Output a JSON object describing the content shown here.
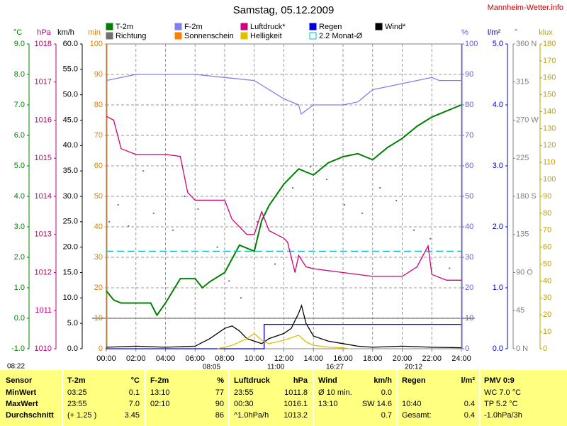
{
  "chart_data": {
    "type": "line",
    "title": "Samstag, 05.12.2009",
    "source": "Mannheim-Wetter.info",
    "xlim": [
      0,
      24
    ],
    "xticks": [
      {
        "value": 0,
        "label": "00:00"
      },
      {
        "value": 2,
        "label": "02:00"
      },
      {
        "value": 4,
        "label": "04:00"
      },
      {
        "value": 6,
        "label": "06:00"
      },
      {
        "value": 8,
        "label": "08:00"
      },
      {
        "value": 10,
        "label": "10:00"
      },
      {
        "value": 12,
        "label": "12:00"
      },
      {
        "value": 14,
        "label": "14:00"
      },
      {
        "value": 16,
        "label": "16:00"
      },
      {
        "value": 18,
        "label": "18:00"
      },
      {
        "value": 20,
        "label": "20:00"
      },
      {
        "value": 22,
        "label": "22:00"
      },
      {
        "value": 24,
        "label": "24:00"
      }
    ],
    "grid": true,
    "markers": [
      "08:22",
      "08:05",
      "11:00",
      "16:27",
      "20:12"
    ],
    "axes": [
      {
        "unit": "°C",
        "color": "#008000",
        "lim": [
          -1,
          9
        ],
        "ticks": [
          {
            "value": -1,
            "label": "-1.0"
          },
          {
            "value": 0,
            "label": "0.0"
          },
          {
            "value": 1,
            "label": "1.0"
          },
          {
            "value": 2,
            "label": "2.0"
          },
          {
            "value": 3,
            "label": "3.0"
          },
          {
            "value": 4,
            "label": "4.0"
          },
          {
            "value": 5,
            "label": "5.0"
          },
          {
            "value": 6,
            "label": "6.0"
          },
          {
            "value": 7,
            "label": "7.0"
          },
          {
            "value": 8,
            "label": "8.0"
          },
          {
            "value": 9,
            "label": "9.0"
          }
        ],
        "series": [
          {
            "name": "T-2m",
            "color": "#008000",
            "x": [
              0,
              0.5,
              1,
              2,
              3,
              3.42,
              4,
              5,
              6,
              6.5,
              7,
              8,
              9,
              10,
              10.5,
              11,
              12,
              13,
              14,
              15,
              16,
              17,
              18,
              19,
              20,
              21,
              22,
              23,
              24
            ],
            "values": [
              0.9,
              0.6,
              0.5,
              0.5,
              0.5,
              0.1,
              0.5,
              1.3,
              1.3,
              1.0,
              1.2,
              1.5,
              2.4,
              2.2,
              3.2,
              3.7,
              4.4,
              4.9,
              4.7,
              5.1,
              5.3,
              5.4,
              5.2,
              5.6,
              5.9,
              6.3,
              6.6,
              6.8,
              7.0
            ]
          },
          {
            "name": "2.2 Monat-Ø",
            "color": "#00c0c0",
            "dash": true,
            "x": [
              0,
              24
            ],
            "values": [
              2.2,
              2.2
            ]
          }
        ]
      },
      {
        "unit": "hPa",
        "color": "#c00070",
        "lim": [
          1010,
          1018
        ],
        "ticks": [
          1010,
          1011,
          1012,
          1013,
          1014,
          1015,
          1016,
          1017,
          1018
        ],
        "series": [
          {
            "name": "Luftdruck*",
            "color": "#d0007a",
            "x": [
              0,
              0.5,
              1,
              2,
              4,
              5,
              5.5,
              6,
              8,
              8.5,
              9.5,
              10,
              10.5,
              11,
              12,
              12.25,
              12.75,
              13,
              13.5,
              14,
              16,
              18,
              20,
              21,
              21.75,
              22,
              23,
              24
            ],
            "values": [
              1016.1,
              1016.0,
              1015.25,
              1015.1,
              1015.1,
              1015.05,
              1014.1,
              1013.9,
              1013.9,
              1013.4,
              1013.0,
              1013.0,
              1013.6,
              1013.1,
              1012.9,
              1012.8,
              1012.0,
              1012.45,
              1012.15,
              1012.1,
              1012.0,
              1011.9,
              1011.9,
              1012.15,
              1012.7,
              1011.95,
              1011.8,
              1011.8
            ]
          }
        ]
      },
      {
        "unit": "km/h",
        "color": "#000000",
        "lim": [
          0,
          60
        ],
        "ticks": [
          {
            "value": 0,
            "label": "0.0"
          },
          {
            "value": 5,
            "label": "5.0"
          },
          {
            "value": 10,
            "label": "10.0"
          },
          {
            "value": 15,
            "label": "15.0"
          },
          {
            "value": 20,
            "label": "20.0"
          },
          {
            "value": 25,
            "label": "25.0"
          },
          {
            "value": 30,
            "label": "30.0"
          },
          {
            "value": 35,
            "label": "35.0"
          },
          {
            "value": 40,
            "label": "40.0"
          },
          {
            "value": 45,
            "label": "45.0"
          },
          {
            "value": 50,
            "label": "50.0"
          },
          {
            "value": 55,
            "label": "55.0"
          },
          {
            "value": 60,
            "label": "60.0"
          }
        ],
        "series": [
          {
            "name": "Wind*",
            "color": "#000000",
            "x": [
              0,
              2,
              4,
              6,
              7,
              8,
              8.5,
              9,
              9.5,
              10,
              10.5,
              11,
              12,
              12.5,
              13,
              13.2,
              13.5,
              14,
              15,
              16,
              17,
              18,
              20,
              22,
              24
            ],
            "values": [
              0.3,
              0.5,
              0.3,
              0.5,
              2,
              4,
              4.5,
              3.5,
              2,
              1.5,
              1,
              2,
              3,
              4,
              7,
              8.5,
              5,
              2.5,
              1.5,
              1,
              0.5,
              0.3,
              0.5,
              0.3,
              0.2
            ]
          }
        ]
      },
      {
        "unit": "min",
        "color": "#e08000",
        "lim": [
          0,
          100
        ],
        "ticks": [
          0,
          10,
          20,
          30,
          40,
          50,
          60,
          70,
          80,
          90,
          100
        ],
        "series": [
          {
            "name": "Sonnenschein",
            "color": "#ff8000"
          }
        ]
      },
      {
        "unit": "%",
        "color": "#6060e0",
        "lim": [
          0,
          100
        ],
        "ticks": [
          0,
          10,
          20,
          30,
          40,
          50,
          60,
          70,
          80,
          90,
          100
        ],
        "series": [
          {
            "name": "F-2m",
            "color": "#8080f0",
            "x": [
              0,
              2,
              6,
              8,
              10,
              11,
              12,
              13,
              13.17,
              14,
              16,
              17,
              18,
              19,
              20,
              21,
              22,
              22.5,
              24
            ],
            "values": [
              88,
              90,
              90,
              89,
              88,
              85,
              82,
              80,
              77,
              80,
              80,
              81,
              85,
              86,
              87,
              88,
              89,
              88,
              88
            ]
          }
        ]
      },
      {
        "unit": "l/m²",
        "color": "#0000c0",
        "lim": [
          0,
          5
        ],
        "ticks": [
          {
            "value": 0,
            "label": "0.0"
          },
          {
            "value": 1,
            "label": "1.0"
          },
          {
            "value": 2,
            "label": "2.0"
          },
          {
            "value": 3,
            "label": "3.0"
          },
          {
            "value": 4,
            "label": "4.0"
          },
          {
            "value": 5,
            "label": "5.0"
          }
        ],
        "series": [
          {
            "name": "Regen",
            "color": "#0000e0",
            "x": [
              0,
              10.67,
              10.67,
              24
            ],
            "values": [
              0,
              0,
              0.4,
              0.4
            ]
          }
        ]
      },
      {
        "unit": "°",
        "color": "#808080",
        "lim": [
          0,
          360
        ],
        "ticks": [
          {
            "value": 0,
            "label": "0 N"
          },
          45,
          {
            "value": 90,
            "label": "90 O"
          },
          135,
          {
            "value": 180,
            "label": "180 S"
          },
          225,
          {
            "value": 270,
            "label": "270 W"
          },
          315,
          {
            "value": 360,
            "label": "360 N"
          }
        ],
        "series": [
          {
            "name": "Richtung",
            "color": "#707070",
            "type": "scatter",
            "x": [
              0.2,
              0.8,
              1.5,
              2.5,
              3.2,
              4.5,
              5.3,
              6.2,
              7.5,
              8.3,
              9.1,
              10.2,
              11.4,
              12.6,
              13.8,
              14.9,
              16.1,
              17.3,
              18.5,
              19.6,
              20.8,
              21.9,
              23.2
            ],
            "values": [
              150,
              170,
              145,
              210,
              160,
              140,
              180,
              165,
              120,
              80,
              60,
              150,
              100,
              190,
              215,
              200,
              170,
              160,
              190,
              175,
              140,
              130,
              95
            ]
          }
        ]
      },
      {
        "unit": "klux",
        "color": "#c0a000",
        "lim": [
          0,
          180
        ],
        "ticks": [
          0,
          10,
          20,
          30,
          40,
          50,
          60,
          70,
          80,
          90,
          100,
          110,
          120,
          130,
          140,
          150,
          160,
          170,
          180
        ],
        "series": [
          {
            "name": "Helligkeit",
            "color": "#e0c000",
            "x": [
              7.5,
              8.5,
              9.5,
              10,
              10.5,
              11,
              12,
              13,
              13.5,
              14,
              15,
              16,
              16.5
            ],
            "values": [
              0,
              2,
              6,
              9,
              5,
              3,
              5,
              8,
              4,
              2,
              1,
              0.5,
              0
            ]
          }
        ]
      }
    ]
  },
  "table": {
    "header": [
      [
        "Sensor"
      ],
      [
        "T-2m",
        "°C"
      ],
      [
        "F-2m",
        "%"
      ],
      [
        "Luftdruck",
        "hPa"
      ],
      [
        "Wind",
        "km/h"
      ],
      [
        "Regen",
        "l/m²"
      ],
      [
        "PMV 0:9"
      ]
    ],
    "rows": [
      [
        [
          "MinWert"
        ],
        [
          "03:25",
          "0.1"
        ],
        [
          "13:10",
          "77"
        ],
        [
          "23:55",
          "1011.8"
        ],
        [
          "Ø 10 min.",
          "0.0"
        ],
        [],
        [
          "WC 7.0 °C"
        ]
      ],
      [
        [
          "MaxWert"
        ],
        [
          "23:55",
          "7.0"
        ],
        [
          "02:10",
          "90"
        ],
        [
          "00:30",
          "1016.1"
        ],
        [
          "13:10",
          "SW 14.6"
        ],
        [
          "10:40",
          "0.4"
        ],
        [
          "TP 5.2 °C"
        ]
      ],
      [
        [
          "Durchschnitt"
        ],
        [
          "(+ 1.25 )",
          "3.45"
        ],
        [
          "86"
        ],
        [
          "^1.0hPa/h",
          "1013.2"
        ],
        [
          "0.7"
        ],
        [
          "Gesamt:",
          "0.4"
        ],
        [
          "-1.0hPa/3h"
        ]
      ]
    ]
  }
}
